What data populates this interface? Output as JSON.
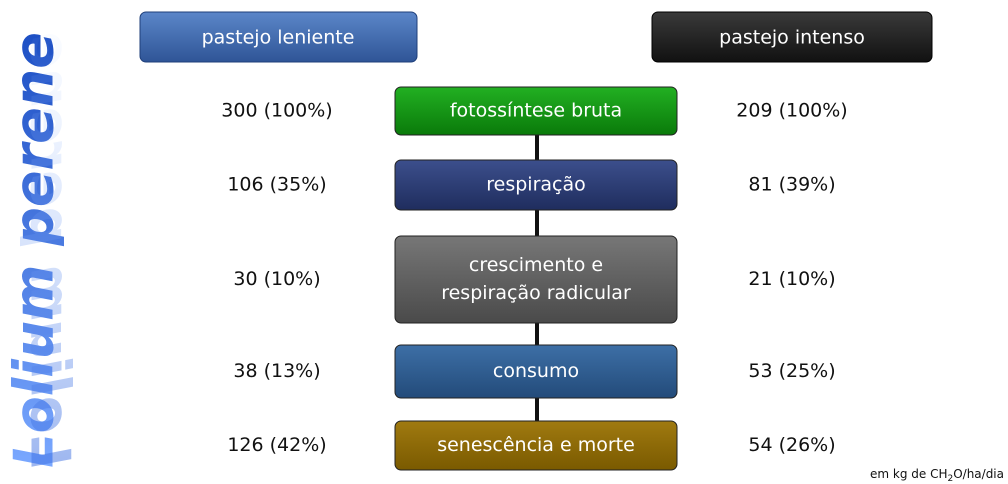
{
  "title": "Lolium perene",
  "headers": {
    "left": "pastejo leniente",
    "right": "pastejo intenso"
  },
  "rows": [
    {
      "label": [
        "fotossíntese bruta"
      ],
      "leniente": "300 (100%)",
      "intenso": "209 (100%)"
    },
    {
      "label": [
        "respiração"
      ],
      "leniente": "106 (35%)",
      "intenso": "81 (39%)"
    },
    {
      "label": [
        "crescimento e",
        "respiração radicular"
      ],
      "leniente": "30 (10%)",
      "intenso": "21 (10%)"
    },
    {
      "label": [
        "consumo"
      ],
      "leniente": "38 (13%)",
      "intenso": "53 (25%)"
    },
    {
      "label": [
        "senescência e morte"
      ],
      "leniente": "126 (42%)",
      "intenso": "54 (26%)"
    }
  ],
  "footnote": {
    "before": "em kg de CH",
    "sub": "2",
    "after": "O/ha/dia"
  }
}
